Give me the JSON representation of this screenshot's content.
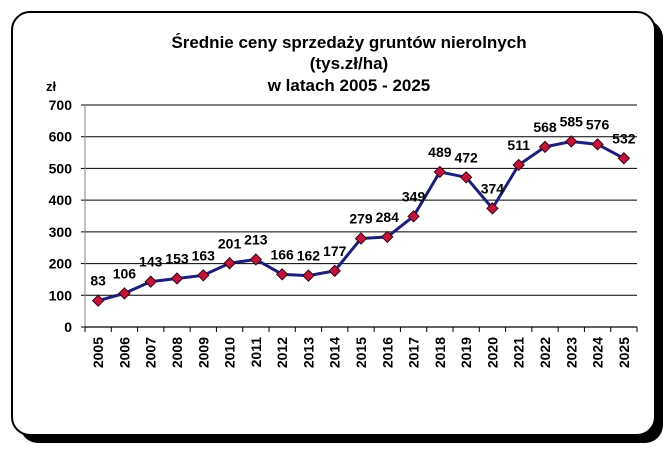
{
  "chart_data": {
    "type": "line",
    "title": [
      "Średnie ceny sprzedaży gruntów nierolnych",
      "(tys.zł/ha)",
      "w latach 2005 - 2025"
    ],
    "ylabel": "zł",
    "xlabel": "",
    "ylim": [
      0,
      700
    ],
    "yticks": [
      0,
      100,
      200,
      300,
      400,
      500,
      600,
      700
    ],
    "grid": true,
    "legend": "none",
    "categories": [
      "2005",
      "2006",
      "2007",
      "2008",
      "2009",
      "2010",
      "2011",
      "2012",
      "2013",
      "2014",
      "2015",
      "2016",
      "2017",
      "2018",
      "2019",
      "2020",
      "2021",
      "2022",
      "2023",
      "2024",
      "2025"
    ],
    "values": [
      83,
      106,
      143,
      153,
      163,
      201,
      213,
      166,
      162,
      177,
      279,
      284,
      349,
      489,
      472,
      374,
      511,
      568,
      585,
      576,
      532
    ],
    "data_labels": [
      "83",
      "106",
      "143",
      "153",
      "163",
      "201",
      "213",
      "166",
      "162",
      "177",
      "279",
      "284",
      "349",
      "489",
      "472",
      "374",
      "511",
      "568",
      "585",
      "576",
      "532"
    ],
    "line_color": "#1f1f7a",
    "marker_color": "#c0143c",
    "marker": "diamond"
  }
}
